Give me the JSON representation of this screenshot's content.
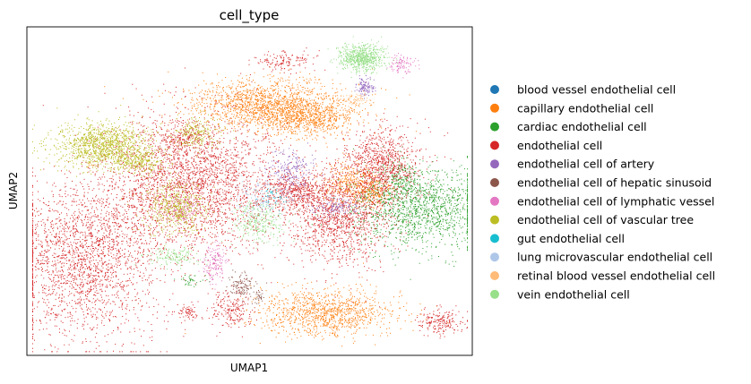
{
  "chart_data": {
    "type": "scatter",
    "title": "cell_type",
    "xlabel": "UMAP1",
    "ylabel": "UMAP2",
    "ticks": "none",
    "grid": false,
    "legend_position": "right",
    "series": [
      {
        "name": "blood vessel endothelial cell",
        "color": "#1f77b4",
        "clusters": []
      },
      {
        "name": "capillary endothelial cell",
        "color": "#ff7f0e",
        "clusters": [
          [
            0.54,
            0.77,
            0.18,
            0.07,
            1500
          ],
          [
            0.63,
            0.72,
            0.12,
            0.05,
            700
          ],
          [
            0.67,
            0.13,
            0.16,
            0.07,
            1100
          ],
          [
            0.73,
            0.53,
            0.07,
            0.06,
            400
          ],
          [
            0.78,
            0.49,
            0.04,
            0.04,
            200
          ]
        ]
      },
      {
        "name": "cardiac endothelial cell",
        "color": "#2ca02c",
        "clusters": [
          [
            0.88,
            0.45,
            0.16,
            0.12,
            1500
          ],
          [
            0.84,
            0.55,
            0.04,
            0.06,
            150
          ],
          [
            0.37,
            0.23,
            0.03,
            0.02,
            40
          ]
        ]
      },
      {
        "name": "endothelial cell",
        "color": "#d62728",
        "clusters": [
          [
            0.13,
            0.29,
            0.17,
            0.24,
            2200
          ],
          [
            0.37,
            0.53,
            0.2,
            0.21,
            2800
          ],
          [
            0.7,
            0.42,
            0.11,
            0.15,
            1300
          ],
          [
            0.8,
            0.58,
            0.09,
            0.11,
            900
          ],
          [
            0.6,
            0.5,
            0.08,
            0.06,
            500
          ],
          [
            0.58,
            0.9,
            0.07,
            0.03,
            140
          ],
          [
            0.93,
            0.1,
            0.05,
            0.04,
            200
          ],
          [
            0.46,
            0.14,
            0.05,
            0.06,
            200
          ],
          [
            0.36,
            0.13,
            0.03,
            0.02,
            70
          ],
          [
            0.35,
            0.66,
            0.06,
            0.04,
            150
          ]
        ]
      },
      {
        "name": "endothelial cell of artery",
        "color": "#9467bd",
        "clusters": [
          [
            0.59,
            0.56,
            0.05,
            0.07,
            220
          ],
          [
            0.76,
            0.82,
            0.02,
            0.03,
            120
          ],
          [
            0.69,
            0.45,
            0.06,
            0.03,
            110
          ]
        ]
      },
      {
        "name": "endothelial cell of hepatic sinusoid",
        "color": "#8c564b",
        "clusters": [
          [
            0.48,
            0.21,
            0.03,
            0.04,
            120
          ],
          [
            0.52,
            0.18,
            0.01,
            0.02,
            30
          ]
        ]
      },
      {
        "name": "endothelial cell of lymphatic vessel",
        "color": "#e377c2",
        "clusters": [
          [
            0.42,
            0.28,
            0.03,
            0.06,
            160
          ],
          [
            0.35,
            0.45,
            0.04,
            0.04,
            120
          ],
          [
            0.84,
            0.89,
            0.03,
            0.03,
            100
          ]
        ]
      },
      {
        "name": "endothelial cell of vascular tree",
        "color": "#bcbd22",
        "clusters": [
          [
            0.17,
            0.64,
            0.11,
            0.07,
            1200
          ],
          [
            0.38,
            0.68,
            0.05,
            0.05,
            220
          ],
          [
            0.33,
            0.45,
            0.07,
            0.08,
            500
          ],
          [
            0.25,
            0.59,
            0.05,
            0.04,
            250
          ]
        ]
      },
      {
        "name": "gut endothelial cell",
        "color": "#17becf",
        "clusters": [
          [
            0.55,
            0.48,
            0.03,
            0.03,
            40
          ]
        ]
      },
      {
        "name": "lung microvascular endothelial cell",
        "color": "#aec7e8",
        "clusters": [
          [
            0.52,
            0.47,
            0.06,
            0.06,
            150
          ]
        ]
      },
      {
        "name": "retinal blood vessel endothelial cell",
        "color": "#ffbb78",
        "clusters": [
          [
            0.74,
            0.78,
            0.03,
            0.02,
            70
          ],
          [
            0.14,
            0.58,
            0.01,
            0.01,
            12
          ]
        ]
      },
      {
        "name": "vein endothelial cell",
        "color": "#98df8a",
        "clusters": [
          [
            0.75,
            0.91,
            0.05,
            0.04,
            700
          ],
          [
            0.52,
            0.41,
            0.06,
            0.06,
            300
          ],
          [
            0.33,
            0.3,
            0.06,
            0.03,
            160
          ]
        ]
      }
    ]
  }
}
